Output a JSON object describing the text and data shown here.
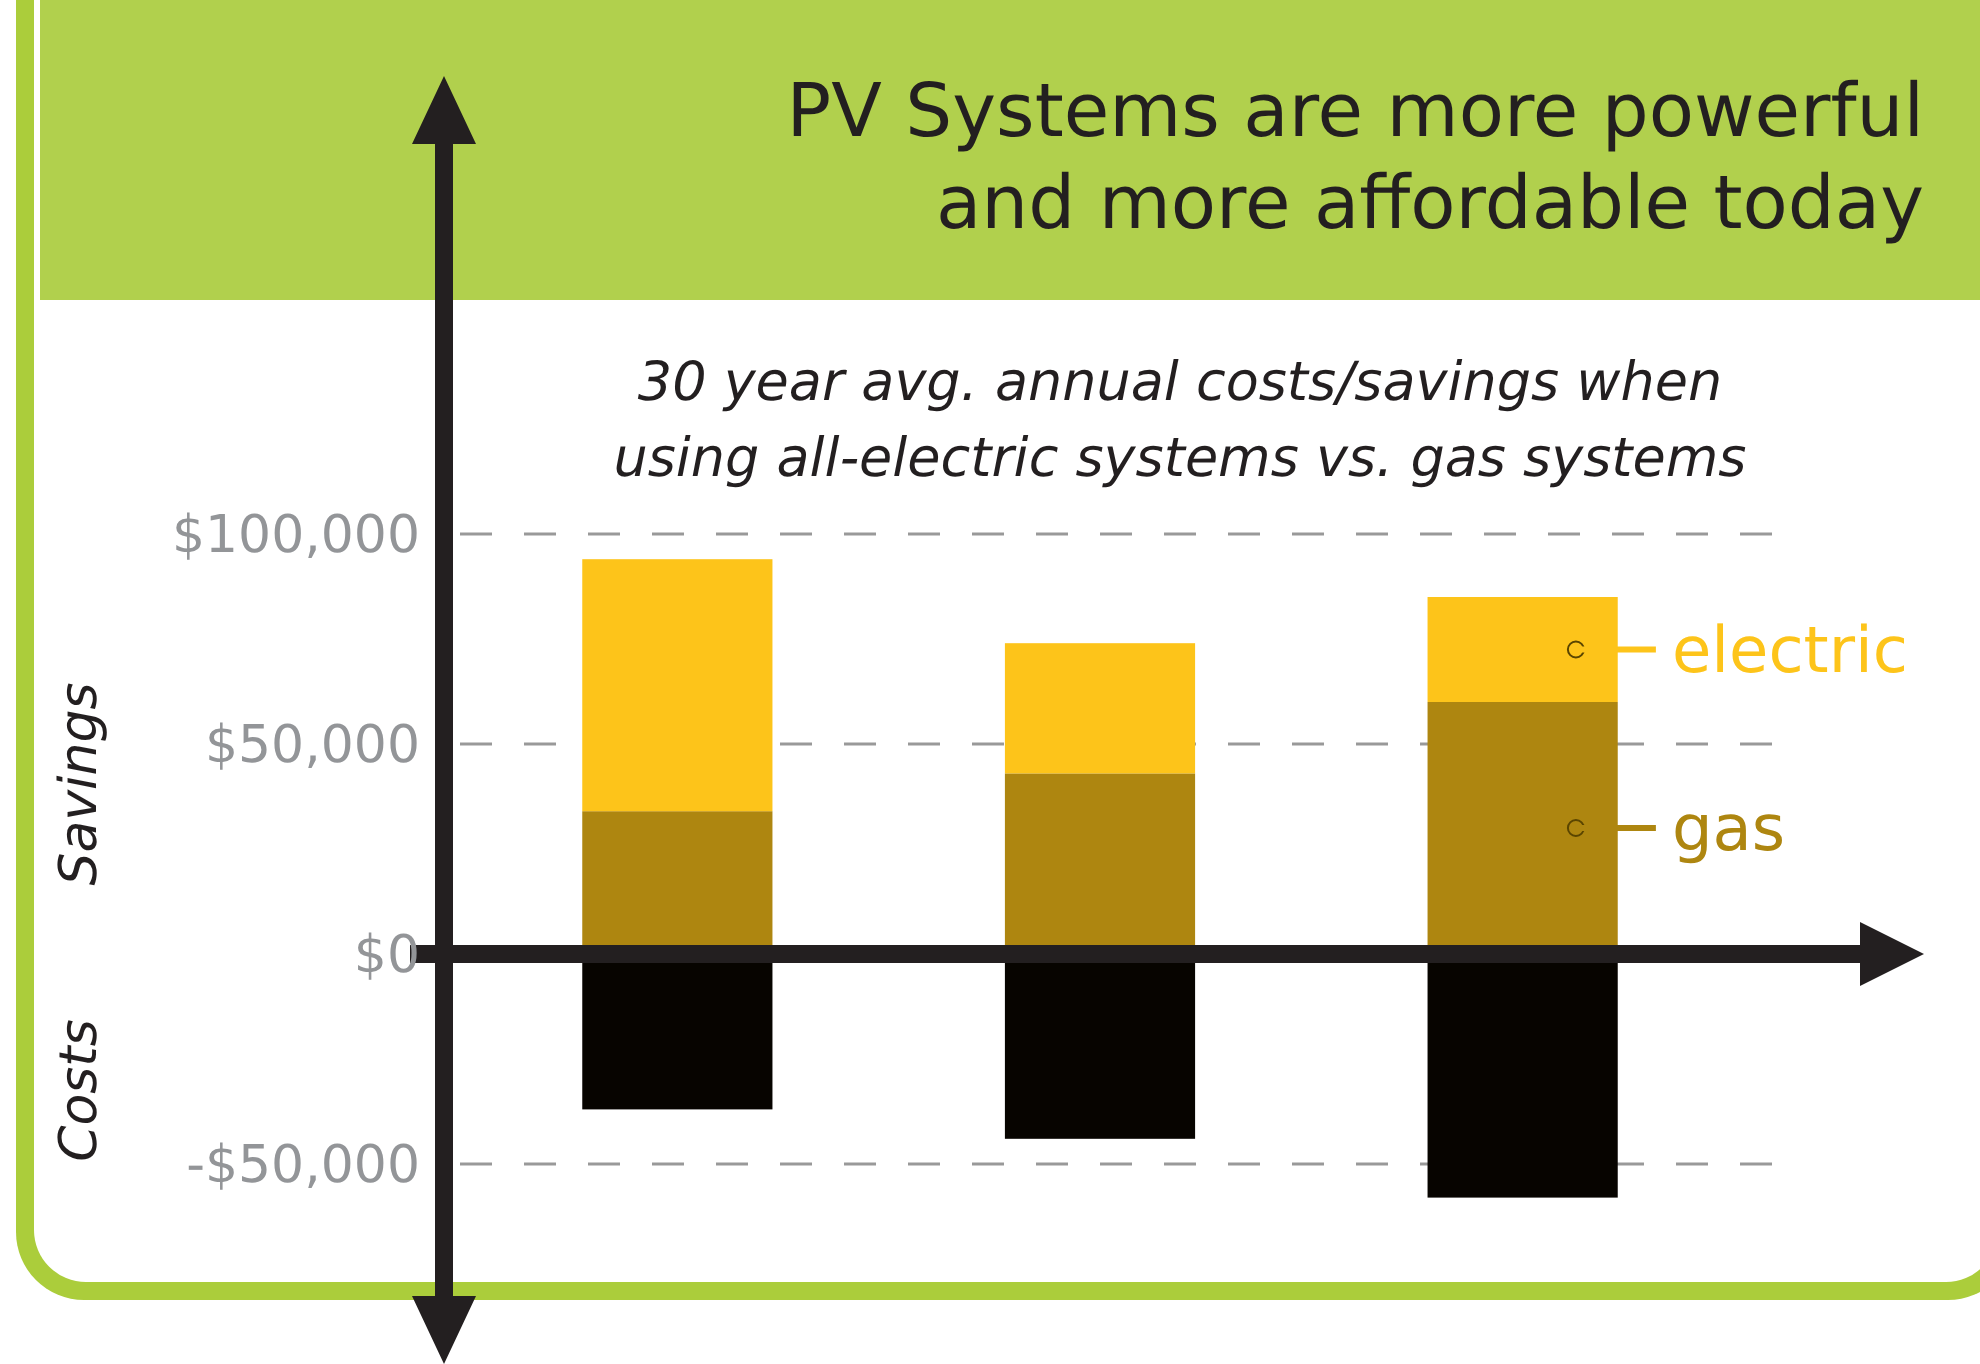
{
  "chart_data": {
    "type": "bar",
    "title": "PV Systems are more powerful and more affordable today",
    "subtitle": "30 year avg. annual costs/savings when using all-electric systems vs. gas systems",
    "annotations": [
      "Savings",
      "Costs"
    ],
    "categories": [
      null,
      null,
      null
    ],
    "stacked": true,
    "series": [
      {
        "name": "gas",
        "color": "#ae8610",
        "values": [
          34000,
          43000,
          60000
        ]
      },
      {
        "name": "electric",
        "color": "#fdc41a",
        "values": [
          60000,
          31000,
          25000
        ]
      },
      {
        "color": "#070400",
        "values": [
          -37000,
          -44000,
          -58000
        ]
      }
    ],
    "ylim": [
      -65000,
      100000
    ],
    "yticks": [
      {
        "value": -50000,
        "label": "-$50,000"
      },
      {
        "value": 0,
        "label": "$0"
      },
      {
        "value": 50000,
        "label": "$50,000"
      },
      {
        "value": 100000,
        "label": "$100,000"
      }
    ],
    "grid": "y",
    "legend": "right"
  }
}
